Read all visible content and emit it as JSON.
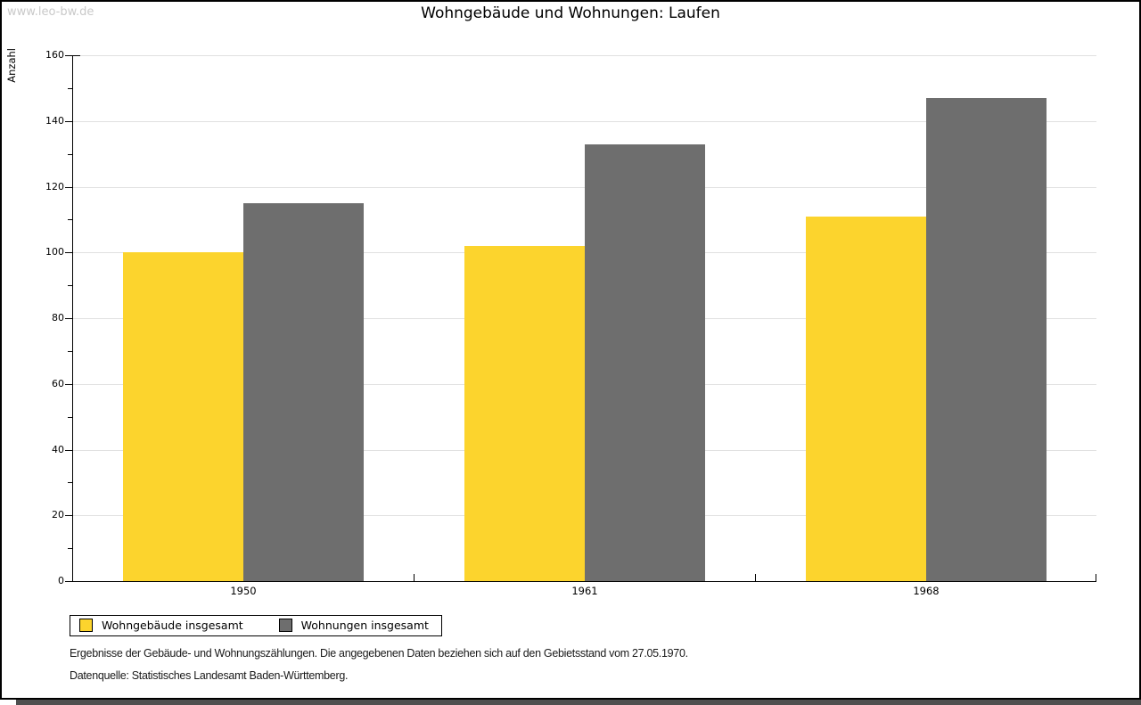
{
  "page": {
    "watermark": "www.leo-bw.de"
  },
  "chart_data": {
    "type": "bar",
    "title": "Wohngebäude und Wohnungen: Laufen",
    "xlabel": "",
    "ylabel": "Anzahl",
    "categories": [
      "1950",
      "1961",
      "1968"
    ],
    "series": [
      {
        "name": "Wohngebäude insgesamt",
        "color": "#FCD42D",
        "values": [
          100,
          102,
          111
        ]
      },
      {
        "name": "Wohnungen insgesamt",
        "color": "#6E6E6E",
        "values": [
          115,
          133,
          147
        ]
      }
    ],
    "ylim": [
      0,
      160
    ],
    "ytick_step": 20,
    "yminor_step": 10,
    "ytick_labels": [
      "0",
      "20",
      "40",
      "60",
      "80",
      "100",
      "120",
      "140",
      "160"
    ],
    "grid": true,
    "grid_color": "#E0E0E0",
    "axis_color": "#000000",
    "legend_position": "bottom-left"
  },
  "footer": {
    "line1": "Ergebnisse der Gebäude- und Wohnungszählungen. Die angegebenen Daten beziehen sich auf den Gebietsstand vom 27.05.1970.",
    "line2": "Datenquelle: Statistisches Landesamt Baden-Württemberg."
  }
}
